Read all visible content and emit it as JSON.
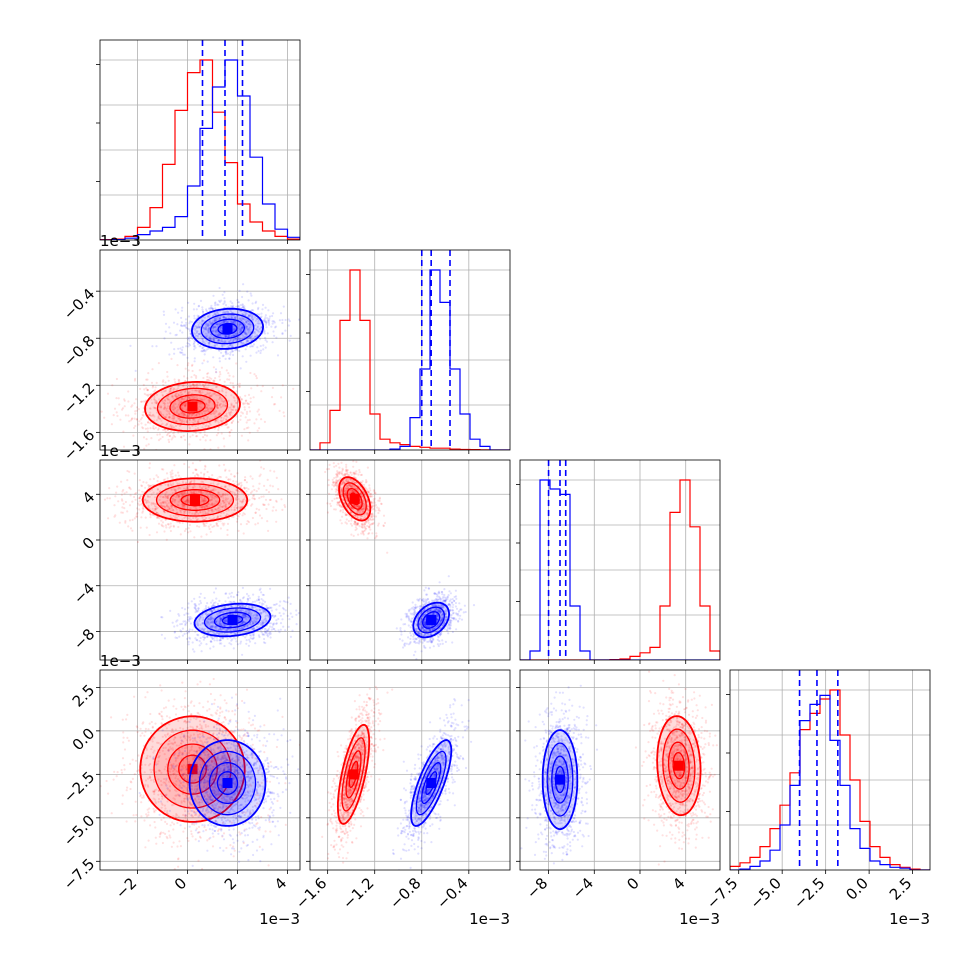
{
  "chart_data": {
    "type": "corner",
    "series": [
      {
        "name": "",
        "color": "#ff0000"
      },
      {
        "name": "",
        "color": "#0000ff"
      }
    ],
    "parameters": [
      {
        "range": [
          -3.5,
          4.5
        ],
        "ticks": [
          -2,
          0,
          2,
          4
        ],
        "tick_labels": [
          "−2",
          "0",
          "2",
          "4"
        ],
        "offset": "1e−3"
      },
      {
        "range": [
          -1.75,
          -0.05
        ],
        "ticks": [
          -1.6,
          -1.2,
          -0.8,
          -0.4
        ],
        "tick_labels": [
          "−1.6",
          "−1.2",
          "−0.8",
          "−0.4"
        ],
        "offset": "1e−3"
      },
      {
        "range": [
          -10.5,
          7
        ],
        "ticks": [
          -8,
          -4,
          0,
          4
        ],
        "tick_labels": [
          "−8",
          "−4",
          "0",
          "4"
        ],
        "offset": "1e−3"
      },
      {
        "range": [
          -8,
          3.5
        ],
        "ticks": [
          -7.5,
          -5.0,
          -2.5,
          0.0,
          2.5
        ],
        "tick_labels": [
          "−7.5",
          "−5.0",
          "−2.5",
          "0.0",
          "2.5"
        ],
        "offset": "1e−3"
      }
    ],
    "histograms": [
      {
        "param": 0,
        "bin_edges": [
          -3.5,
          -3.0,
          -2.5,
          -2.0,
          -1.5,
          -1.0,
          -0.5,
          0.0,
          0.5,
          1.0,
          1.5,
          2.0,
          2.5,
          3.0,
          3.5,
          4.0,
          4.5
        ],
        "red": [
          0.002,
          0.005,
          0.02,
          0.07,
          0.18,
          0.42,
          0.72,
          0.93,
          1.0,
          0.71,
          0.43,
          0.2,
          0.1,
          0.05,
          0.02,
          0.005
        ],
        "blue": [
          0.0,
          0.002,
          0.01,
          0.03,
          0.05,
          0.07,
          0.13,
          0.3,
          0.62,
          0.85,
          1.0,
          0.8,
          0.46,
          0.2,
          0.06,
          0.015
        ],
        "quantiles_blue": [
          0.6,
          1.5,
          2.2
        ]
      },
      {
        "param": 1,
        "bin_edges": [
          -1.75,
          -1.665,
          -1.58,
          -1.495,
          -1.41,
          -1.325,
          -1.24,
          -1.155,
          -1.07,
          -0.985,
          -0.9,
          -0.815,
          -0.73,
          -0.645,
          -0.56,
          -0.475,
          -0.39,
          -0.305,
          -0.22,
          -0.135,
          -0.05
        ],
        "red": [
          0.0,
          0.04,
          0.22,
          0.72,
          1.0,
          0.72,
          0.2,
          0.06,
          0.04,
          0.03,
          0.02,
          0.015,
          0.01,
          0.01,
          0.005,
          0.003,
          0.002,
          0.001,
          0.0,
          0.0
        ],
        "blue": [
          0.0,
          0.0,
          0.0,
          0.0,
          0.0,
          0.0,
          0.0,
          0.0,
          0.005,
          0.02,
          0.18,
          0.45,
          1.0,
          0.82,
          0.45,
          0.2,
          0.06,
          0.02,
          0.0,
          0.0
        ],
        "quantiles_blue": [
          -0.8,
          -0.72,
          -0.56
        ]
      },
      {
        "param": 2,
        "bin_edges": [
          -10.5,
          -9.625,
          -8.75,
          -7.875,
          -7.0,
          -6.125,
          -5.25,
          -4.375,
          -3.5,
          -2.625,
          -1.75,
          -0.875,
          0.0,
          0.875,
          1.75,
          2.625,
          3.5,
          4.375,
          5.25,
          6.125,
          7.0
        ],
        "red": [
          0.0,
          0.0,
          0.0,
          0.0,
          0.0,
          0.0,
          0.0,
          0.0,
          0.0,
          0.002,
          0.006,
          0.02,
          0.04,
          0.07,
          0.3,
          0.82,
          1.0,
          0.74,
          0.3,
          0.05
        ],
        "blue": [
          0.0,
          0.05,
          1.0,
          0.95,
          0.92,
          0.3,
          0.05,
          0.0,
          0.0,
          0.0,
          0.0,
          0.0,
          0.0,
          0.0,
          0.0,
          0.0,
          0.0,
          0.0,
          0.0,
          0.0
        ],
        "quantiles_blue": [
          -8.0,
          -7.0,
          -6.5
        ]
      },
      {
        "param": 3,
        "bin_edges": [
          -8.0,
          -7.425,
          -6.85,
          -6.275,
          -5.7,
          -5.125,
          -4.55,
          -3.975,
          -3.4,
          -2.825,
          -2.25,
          -1.675,
          -1.1,
          -0.525,
          0.05,
          0.625,
          1.2,
          1.775,
          2.35,
          2.925,
          3.5
        ],
        "red": [
          0.02,
          0.04,
          0.07,
          0.13,
          0.23,
          0.36,
          0.54,
          0.78,
          0.87,
          0.95,
          1.0,
          0.75,
          0.5,
          0.27,
          0.13,
          0.07,
          0.03,
          0.015,
          0.005,
          0.0
        ],
        "blue": [
          0.0,
          0.005,
          0.02,
          0.05,
          0.11,
          0.25,
          0.47,
          0.83,
          0.92,
          0.97,
          0.72,
          0.47,
          0.23,
          0.12,
          0.05,
          0.03,
          0.015,
          0.01,
          0.0,
          0.0
        ],
        "quantiles_blue": [
          -4.0,
          -3.0,
          -1.8
        ]
      }
    ],
    "scatter_panels": [
      {
        "x_param": 0,
        "y_param": 1,
        "red": {
          "mean": [
            0.2,
            -1.38
          ],
          "std": [
            1.0,
            0.11
          ],
          "corr": 0.1
        },
        "blue": {
          "mean": [
            1.6,
            -0.72
          ],
          "std": [
            0.75,
            0.09
          ],
          "corr": 0.1
        }
      },
      {
        "x_param": 0,
        "y_param": 2,
        "red": {
          "mean": [
            0.3,
            3.5
          ],
          "std": [
            1.1,
            1.0
          ],
          "corr": 0.0
        },
        "blue": {
          "mean": [
            1.8,
            -7.0
          ],
          "std": [
            0.8,
            0.75
          ],
          "corr": 0.2
        }
      },
      {
        "x_param": 1,
        "y_param": 2,
        "red": {
          "mean": [
            -1.37,
            3.6
          ],
          "std": [
            0.07,
            1.0
          ],
          "corr": -0.45
        },
        "blue": {
          "mean": [
            -0.72,
            -7.0
          ],
          "std": [
            0.08,
            0.8
          ],
          "corr": 0.35
        }
      },
      {
        "x_param": 0,
        "y_param": 3,
        "red": {
          "mean": [
            0.2,
            -2.2
          ],
          "std": [
            1.1,
            1.6
          ],
          "corr": 0.0
        },
        "blue": {
          "mean": [
            1.6,
            -3.0
          ],
          "std": [
            0.8,
            1.3
          ],
          "corr": 0.0
        }
      },
      {
        "x_param": 1,
        "y_param": 3,
        "red": {
          "mean": [
            -1.38,
            -2.5
          ],
          "std": [
            0.07,
            1.5
          ],
          "corr": 0.65
        },
        "blue": {
          "mean": [
            -0.72,
            -3.0
          ],
          "std": [
            0.09,
            1.3
          ],
          "corr": 0.75
        }
      },
      {
        "x_param": 2,
        "y_param": 3,
        "red": {
          "mean": [
            3.4,
            -2.0
          ],
          "std": [
            1.0,
            1.5
          ],
          "corr": -0.1
        },
        "blue": {
          "mean": [
            -7.0,
            -2.8
          ],
          "std": [
            0.8,
            1.5
          ],
          "corr": 0.0
        }
      }
    ],
    "grid": true,
    "legend": "none"
  }
}
